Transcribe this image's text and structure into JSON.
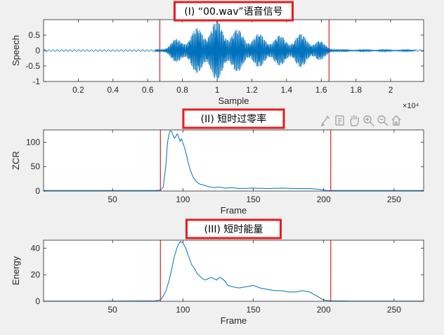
{
  "chart_data": [
    {
      "type": "line",
      "title": "(I) “00.wav”语音信号",
      "xlabel": "Sample",
      "ylabel": "Speech",
      "xlim": [
        0,
        21900
      ],
      "ylim": [
        -1,
        1
      ],
      "x_exponent_label": "×10⁴",
      "xticks": [
        2000,
        4000,
        6000,
        8000,
        10000,
        12000,
        14000,
        16000,
        18000,
        20000
      ],
      "xtick_labels": [
        "0.2",
        "0.4",
        "0.6",
        "0.8",
        "1",
        "1.2",
        "1.4",
        "1.6",
        "1.8",
        "2"
      ],
      "yticks": [
        -1,
        -0.5,
        0,
        0.5
      ],
      "ytick_labels": [
        "-1",
        "-0.5",
        "0",
        "0.5"
      ],
      "series": [
        {
          "style": "oscillation",
          "color": "#0072BD",
          "noise_amplitude": 0.03,
          "envelope": {
            "x": [
              0,
              6400,
              6900,
              7400,
              8000,
              8600,
              9200,
              9600,
              10000,
              10500,
              11000,
              12000,
              13000,
              14000,
              14600,
              15200,
              15800,
              16200,
              16600,
              17000,
              21900
            ],
            "y": [
              0.03,
              0.03,
              0.08,
              0.32,
              0.48,
              0.66,
              0.88,
              1.0,
              0.97,
              0.9,
              0.72,
              0.55,
              0.52,
              0.46,
              0.55,
              0.5,
              0.38,
              0.22,
              0.1,
              0.04,
              0.03
            ]
          }
        }
      ],
      "vlines": [
        {
          "x": 6700,
          "color": "#e02020"
        },
        {
          "x": 16450,
          "color": "#e02020"
        }
      ],
      "grid": false
    },
    {
      "type": "line",
      "title": "(II) 短时过零率",
      "xlabel": "Frame",
      "ylabel": "ZCR",
      "xlim": [
        1,
        271
      ],
      "ylim": [
        0,
        125
      ],
      "xticks": [
        50,
        100,
        150,
        200,
        250
      ],
      "xtick_labels": [
        "50",
        "100",
        "150",
        "200",
        "250"
      ],
      "yticks": [
        0,
        50,
        100
      ],
      "ytick_labels": [
        "0",
        "50",
        "100"
      ],
      "series": [
        {
          "color": "#0072BD",
          "x": [
            1,
            40,
            80,
            84,
            86,
            88,
            89,
            90,
            91,
            92,
            93,
            94,
            95,
            96,
            97,
            98,
            99,
            100,
            101,
            102,
            103,
            104,
            105,
            106,
            107,
            108,
            110,
            112,
            115,
            118,
            122,
            126,
            130,
            135,
            140,
            150,
            160,
            170,
            180,
            190,
            195,
            198,
            200,
            202,
            205,
            220,
            271
          ],
          "y": [
            1,
            1,
            1,
            2,
            8,
            55,
            98,
            115,
            123,
            122,
            114,
            108,
            112,
            117,
            110,
            102,
            107,
            98,
            90,
            80,
            68,
            55,
            45,
            38,
            30,
            25,
            18,
            14,
            12,
            9,
            7,
            8,
            6,
            7,
            5,
            6,
            5,
            6,
            5,
            5,
            4,
            3,
            2,
            1,
            1,
            1,
            1
          ]
        }
      ],
      "vlines": [
        {
          "x": 84,
          "color": "#e02020"
        },
        {
          "x": 205,
          "color": "#e02020"
        }
      ],
      "grid": false
    },
    {
      "type": "line",
      "title": "(III) 短时能量",
      "xlabel": "Frame",
      "ylabel": "Energy",
      "xlim": [
        1,
        271
      ],
      "ylim": [
        0,
        46
      ],
      "xticks": [
        50,
        100,
        150,
        200,
        250
      ],
      "xtick_labels": [
        "50",
        "100",
        "150",
        "200",
        "250"
      ],
      "yticks": [
        0,
        20,
        40
      ],
      "ytick_labels": [
        "0",
        "20",
        "40"
      ],
      "series": [
        {
          "color": "#0072BD",
          "x": [
            1,
            40,
            80,
            84,
            86,
            88,
            90,
            92,
            94,
            96,
            98,
            100,
            102,
            104,
            106,
            108,
            110,
            112,
            114,
            116,
            118,
            120,
            122,
            124,
            126,
            128,
            130,
            132,
            135,
            140,
            145,
            150,
            155,
            160,
            165,
            170,
            175,
            180,
            185,
            190,
            195,
            200,
            205,
            220,
            271
          ],
          "y": [
            0.1,
            0.1,
            0.3,
            1,
            4,
            8,
            15,
            24,
            34,
            41,
            45,
            44,
            40,
            34,
            28,
            25,
            21,
            19,
            17,
            16,
            17,
            18,
            17,
            16,
            18,
            17,
            15,
            12,
            11,
            10,
            11,
            12,
            10,
            9,
            8,
            8,
            7,
            7,
            8,
            7,
            4,
            1,
            0.3,
            0.1,
            0.1
          ]
        }
      ],
      "vlines": [
        {
          "x": 84,
          "color": "#e02020"
        },
        {
          "x": 205,
          "color": "#e02020"
        }
      ],
      "grid": false
    }
  ],
  "figure": {
    "background": "#f0f0f0",
    "axes_background": "#ffffff",
    "title_box_color": "#e81c1c",
    "axis_color": "#262626"
  },
  "toolbar": {
    "icons": [
      "brush-icon",
      "data-cursor-icon",
      "pan-hand-icon",
      "zoom-in-icon",
      "zoom-out-icon",
      "home-icon"
    ]
  }
}
